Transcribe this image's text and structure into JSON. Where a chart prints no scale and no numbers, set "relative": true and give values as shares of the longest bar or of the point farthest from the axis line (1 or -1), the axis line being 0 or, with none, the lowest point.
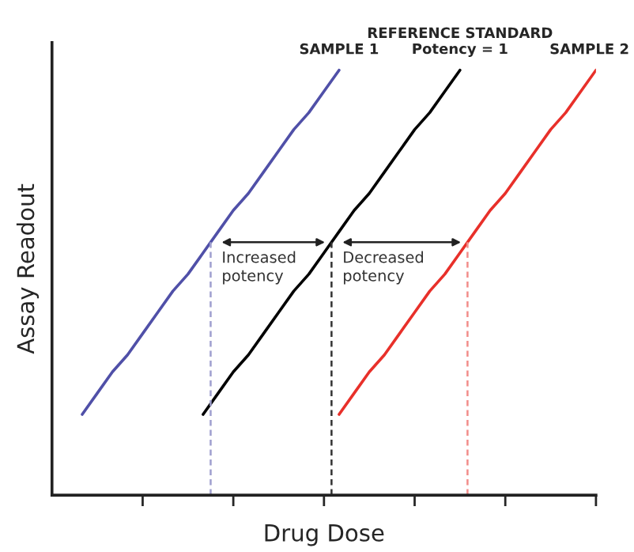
{
  "chart_data": {
    "type": "line",
    "relative": true,
    "xlabel": "Drug Dose",
    "ylabel": "Assay Readout",
    "categories": [
      null,
      null,
      null,
      null,
      null,
      null,
      null,
      null,
      null,
      null,
      null,
      null,
      null,
      null,
      null,
      null,
      null,
      null,
      null,
      null,
      null,
      null,
      null,
      null,
      null,
      null,
      null,
      null,
      null,
      null,
      null,
      null,
      null,
      null,
      null,
      null,
      null
    ],
    "tick_labels": false,
    "grid": false,
    "legend": false,
    "marker": "none",
    "series": [
      {
        "name": "SAMPLE 1",
        "color": "#5050a8",
        "values": [
          null,
          null,
          0.19,
          0.24,
          0.29,
          0.33,
          0.38,
          0.43,
          0.48,
          0.52,
          0.57,
          0.62,
          0.67,
          0.71,
          0.76,
          0.81,
          0.86,
          0.9,
          0.95,
          1.0,
          null,
          null,
          null,
          null,
          null,
          null,
          null,
          null,
          null,
          null,
          null,
          null,
          null,
          null,
          null,
          null,
          null
        ]
      },
      {
        "name": "REFERENCE STANDARD\nPotency = 1",
        "color": "#000000",
        "values": [
          null,
          null,
          null,
          null,
          null,
          null,
          null,
          null,
          null,
          null,
          0.19,
          0.24,
          0.29,
          0.33,
          0.38,
          0.43,
          0.48,
          0.52,
          0.57,
          0.62,
          0.67,
          0.71,
          0.76,
          0.81,
          0.86,
          0.9,
          0.95,
          1.0,
          null,
          null,
          null,
          null,
          null,
          null,
          null,
          null,
          null
        ]
      },
      {
        "name": "SAMPLE 2",
        "color": "#e8302a",
        "values": [
          null,
          null,
          null,
          null,
          null,
          null,
          null,
          null,
          null,
          null,
          null,
          null,
          null,
          null,
          null,
          null,
          null,
          null,
          null,
          0.19,
          0.24,
          0.29,
          0.33,
          0.38,
          0.43,
          0.48,
          0.52,
          0.57,
          0.62,
          0.67,
          0.71,
          0.76,
          0.81,
          0.86,
          0.9,
          0.95,
          1.0
        ]
      }
    ],
    "annotations": [
      "Increased\npotency",
      "Decreased\npotency"
    ]
  }
}
